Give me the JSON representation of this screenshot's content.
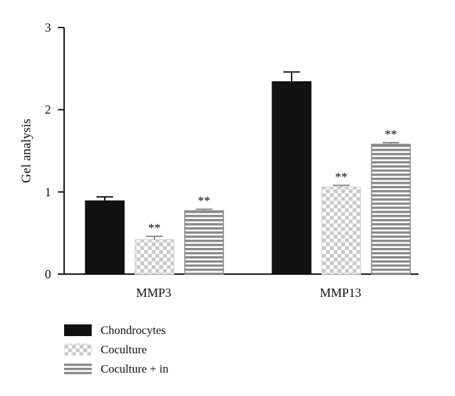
{
  "chart_data": {
    "type": "bar",
    "categories": [
      "MMP3",
      "MMP13"
    ],
    "series": [
      {
        "name": "Chondrocytes",
        "values": [
          0.89,
          2.34
        ],
        "errors": [
          0.05,
          0.12
        ],
        "significance": [
          "",
          ""
        ],
        "pattern": "solid"
      },
      {
        "name": "Coculture",
        "values": [
          0.42,
          1.06
        ],
        "errors": [
          0.04,
          0.02
        ],
        "significance": [
          "**",
          "**"
        ],
        "pattern": "checker"
      },
      {
        "name": "Coculture + in",
        "values": [
          0.77,
          1.58
        ],
        "errors": [
          0.02,
          0.02
        ],
        "significance": [
          "**",
          "**"
        ],
        "pattern": "stripes"
      }
    ],
    "title": "",
    "xlabel": "",
    "ylabel": "Gel analysis",
    "ylim": [
      0,
      3
    ],
    "yticks": [
      "0",
      "1",
      "2",
      "3"
    ],
    "grid": false,
    "legend_position": "bottom-left"
  },
  "colors": {
    "solid": "#111111",
    "checker_light": "#ffffff",
    "checker_dark": "#c8c8c8",
    "stripe_light": "#ffffff",
    "stripe_dark": "#8a8a8a",
    "axis": "#111111"
  }
}
